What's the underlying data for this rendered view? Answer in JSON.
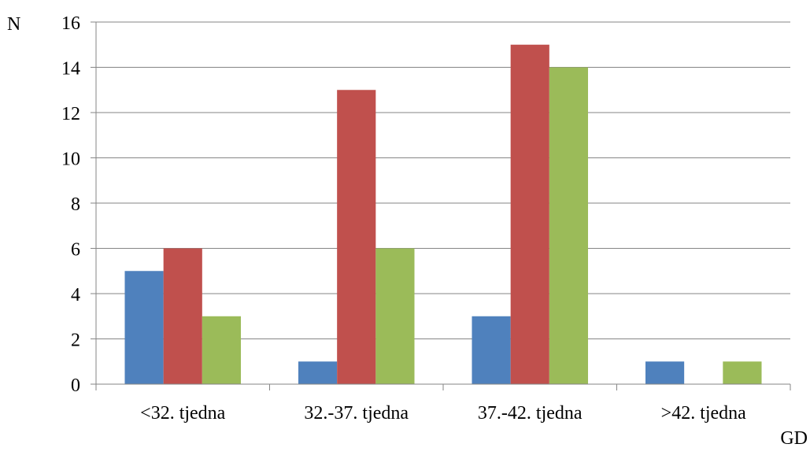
{
  "chart_data": {
    "type": "bar",
    "title": "",
    "xlabel": "GD",
    "ylabel": "N",
    "categories": [
      "<32. tjedna",
      "32.-37. tjedna",
      "37.-42. tjedna",
      ">42. tjedna"
    ],
    "series": [
      {
        "color": "#4F81BD",
        "values": [
          5,
          1,
          3,
          1
        ]
      },
      {
        "color": "#C0504D",
        "values": [
          6,
          13,
          15,
          0
        ]
      },
      {
        "color": "#9BBB59",
        "values": [
          3,
          6,
          14,
          1
        ]
      }
    ],
    "ylim": [
      0,
      16
    ],
    "yticks": [
      0,
      2,
      4,
      6,
      8,
      10,
      12,
      14,
      16
    ],
    "grid": true,
    "legend": "none"
  }
}
